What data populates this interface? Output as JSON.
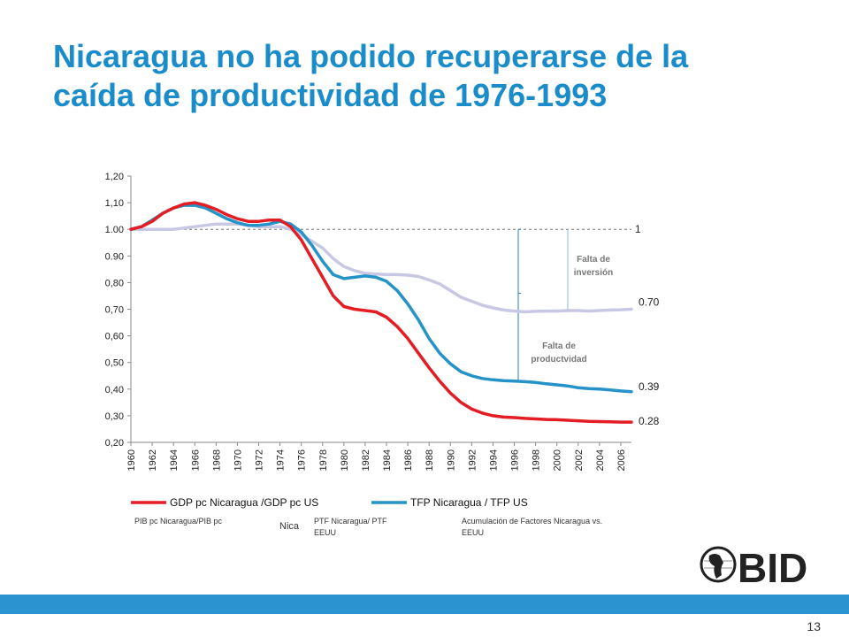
{
  "slide": {
    "title_line1": "Nicaragua no ha podido recuperarse de la",
    "title_line2": "caída de productividad de 1976-1993",
    "page_number": "13",
    "logo_text": "BID",
    "colors": {
      "title": "#1a8cc9",
      "bar": "#2a93d0",
      "logo": "#222222"
    }
  },
  "chart_data": {
    "type": "line",
    "title": "",
    "xlabel": "",
    "ylabel": "",
    "ylim": [
      0.2,
      1.2
    ],
    "yticks": [
      "1,20",
      "1,10",
      "1.00",
      "0.90",
      "0,80",
      "0,70",
      "0,60",
      "0,50",
      "0,40",
      "0,30",
      "0,20"
    ],
    "xticks": [
      "1960",
      "1962",
      "1964",
      "1966",
      "1968",
      "1970",
      "1972",
      "1974",
      "1976",
      "1978",
      "1980",
      "1982",
      "1984",
      "1986",
      "1988",
      "1990",
      "1992",
      "1994",
      "1996",
      "1998",
      "2000",
      "2002",
      "2004",
      "2006"
    ],
    "x": [
      1960,
      1961,
      1962,
      1963,
      1964,
      1965,
      1966,
      1967,
      1968,
      1969,
      1970,
      1971,
      1972,
      1973,
      1974,
      1975,
      1976,
      1977,
      1978,
      1979,
      1980,
      1981,
      1982,
      1983,
      1984,
      1985,
      1986,
      1987,
      1988,
      1989,
      1990,
      1991,
      1992,
      1993,
      1994,
      1995,
      1996,
      1997,
      1998,
      1999,
      2000,
      2001,
      2002,
      2003,
      2004,
      2005,
      2006,
      2007
    ],
    "series": [
      {
        "name": "GDP pc Nicaragua /GDP pc US",
        "color": "#e31d23",
        "values": [
          1.0,
          1.01,
          1.03,
          1.06,
          1.08,
          1.095,
          1.1,
          1.09,
          1.075,
          1.055,
          1.04,
          1.03,
          1.03,
          1.035,
          1.035,
          1.01,
          0.96,
          0.89,
          0.82,
          0.75,
          0.71,
          0.7,
          0.695,
          0.69,
          0.67,
          0.635,
          0.59,
          0.535,
          0.48,
          0.43,
          0.385,
          0.35,
          0.325,
          0.31,
          0.3,
          0.295,
          0.293,
          0.29,
          0.288,
          0.286,
          0.285,
          0.283,
          0.281,
          0.279,
          0.278,
          0.277,
          0.276,
          0.276
        ]
      },
      {
        "name": "TFP Nicaragua / TFP US",
        "color": "#2693c8",
        "values": [
          1.0,
          1.01,
          1.035,
          1.06,
          1.08,
          1.09,
          1.09,
          1.08,
          1.06,
          1.04,
          1.025,
          1.015,
          1.015,
          1.02,
          1.03,
          1.02,
          0.99,
          0.94,
          0.88,
          0.83,
          0.815,
          0.82,
          0.825,
          0.82,
          0.805,
          0.77,
          0.72,
          0.66,
          0.59,
          0.535,
          0.495,
          0.465,
          0.45,
          0.44,
          0.435,
          0.432,
          0.43,
          0.428,
          0.425,
          0.42,
          0.416,
          0.412,
          0.405,
          0.402,
          0.4,
          0.397,
          0.393,
          0.39
        ]
      },
      {
        "name": "",
        "color": "#c8c8e4",
        "values": [
          1.0,
          1.0,
          1.0,
          1.0,
          1.0,
          1.005,
          1.01,
          1.015,
          1.02,
          1.02,
          1.02,
          1.015,
          1.01,
          1.01,
          1.01,
          1.0,
          0.98,
          0.955,
          0.93,
          0.89,
          0.86,
          0.845,
          0.835,
          0.832,
          0.83,
          0.83,
          0.828,
          0.823,
          0.81,
          0.795,
          0.77,
          0.745,
          0.73,
          0.715,
          0.705,
          0.697,
          0.693,
          0.69,
          0.692,
          0.693,
          0.693,
          0.695,
          0.695,
          0.693,
          0.695,
          0.697,
          0.698,
          0.7
        ]
      }
    ],
    "reference_line": {
      "value": 1.0,
      "label": "1"
    },
    "end_labels": [
      "0.70",
      "0.39",
      "0.28"
    ],
    "annotations": {
      "investment_gap": "Falta de inversión",
      "productivity_gap": "Falta de productvidad"
    },
    "legend": {
      "placement": "bottom",
      "items": [
        "GDP pc Nicaragua /GDP pc US",
        "TFP Nicaragua / TFP US"
      ],
      "sub_labels": [
        "PIB pc Nicaragua/PIB pc",
        "Nica",
        "PTF Nicaragua/ PTF EEUU",
        "Acumulación de Factores Nicaragua vs. EEUU"
      ]
    },
    "grid": false
  }
}
